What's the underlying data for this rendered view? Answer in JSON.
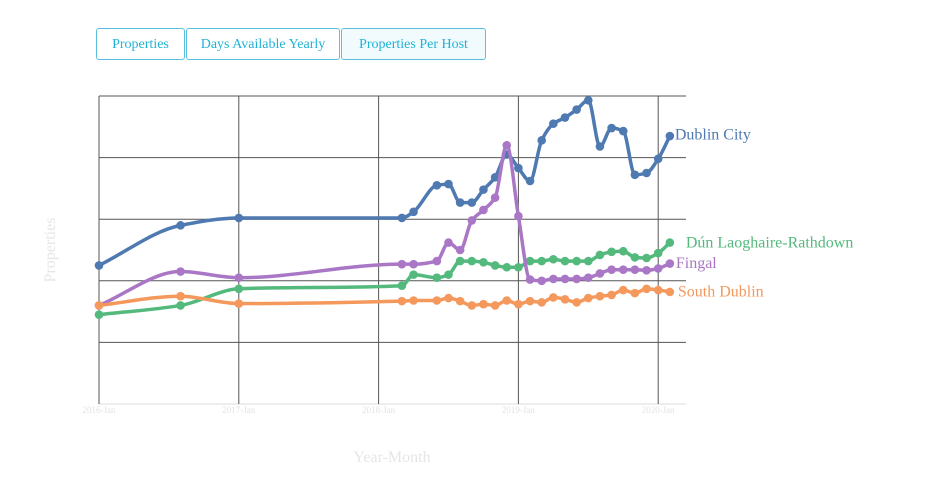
{
  "tabs": [
    {
      "label": "Properties",
      "active": false
    },
    {
      "label": "Days Available Yearly",
      "active": false
    },
    {
      "label": "Properties Per Host",
      "active": true
    }
  ],
  "chart_data": {
    "type": "line",
    "xlabel": "Year-Month",
    "ylabel": "Properties",
    "x_ticks": [
      "2016-Jan",
      "2017-Jan",
      "2018-Jan",
      "2019-Jan",
      "2020-Jan"
    ],
    "y_ticks_shown": false,
    "grid": true,
    "legend": "inline labels at line ends",
    "series": [
      {
        "name": "Dublin City",
        "color": "#4e79b1",
        "points": [
          [
            "2016-01",
            225
          ],
          [
            "2016-08",
            290
          ],
          [
            "2017-01",
            302
          ],
          [
            "2018-03",
            302
          ],
          [
            "2018-04",
            312
          ],
          [
            "2018-06",
            355
          ],
          [
            "2018-07",
            357
          ],
          [
            "2018-08",
            327
          ],
          [
            "2018-09",
            327
          ],
          [
            "2018-10",
            348
          ],
          [
            "2018-11",
            368
          ],
          [
            "2018-12",
            405
          ],
          [
            "2019-01",
            383
          ],
          [
            "2019-02",
            362
          ],
          [
            "2019-03",
            428
          ],
          [
            "2019-04",
            455
          ],
          [
            "2019-05",
            465
          ],
          [
            "2019-06",
            478
          ],
          [
            "2019-07",
            493
          ],
          [
            "2019-08",
            418
          ],
          [
            "2019-09",
            448
          ],
          [
            "2019-10",
            443
          ],
          [
            "2019-11",
            372
          ],
          [
            "2019-12",
            375
          ],
          [
            "2020-01",
            398
          ],
          [
            "2020-02",
            435
          ]
        ]
      },
      {
        "name": "Dún Laoghaire-Rathdown",
        "color": "#53b97c",
        "points": [
          [
            "2016-01",
            145
          ],
          [
            "2016-08",
            160
          ],
          [
            "2017-01",
            187
          ],
          [
            "2018-03",
            192
          ],
          [
            "2018-04",
            210
          ],
          [
            "2018-06",
            205
          ],
          [
            "2018-07",
            210
          ],
          [
            "2018-08",
            232
          ],
          [
            "2018-09",
            232
          ],
          [
            "2018-10",
            230
          ],
          [
            "2018-11",
            225
          ],
          [
            "2018-12",
            222
          ],
          [
            "2019-01",
            222
          ],
          [
            "2019-02",
            232
          ],
          [
            "2019-03",
            232
          ],
          [
            "2019-04",
            235
          ],
          [
            "2019-05",
            232
          ],
          [
            "2019-06",
            232
          ],
          [
            "2019-07",
            232
          ],
          [
            "2019-08",
            242
          ],
          [
            "2019-09",
            247
          ],
          [
            "2019-10",
            248
          ],
          [
            "2019-11",
            238
          ],
          [
            "2019-12",
            237
          ],
          [
            "2020-01",
            245
          ],
          [
            "2020-02",
            262
          ]
        ]
      },
      {
        "name": "Fingal",
        "color": "#a977c5",
        "points": [
          [
            "2016-01",
            160
          ],
          [
            "2016-08",
            215
          ],
          [
            "2017-01",
            205
          ],
          [
            "2018-03",
            227
          ],
          [
            "2018-04",
            227
          ],
          [
            "2018-06",
            232
          ],
          [
            "2018-07",
            262
          ],
          [
            "2018-08",
            250
          ],
          [
            "2018-09",
            298
          ],
          [
            "2018-10",
            315
          ],
          [
            "2018-11",
            335
          ],
          [
            "2018-12",
            420
          ],
          [
            "2019-01",
            305
          ],
          [
            "2019-02",
            202
          ],
          [
            "2019-03",
            200
          ],
          [
            "2019-04",
            203
          ],
          [
            "2019-05",
            203
          ],
          [
            "2019-06",
            203
          ],
          [
            "2019-07",
            205
          ],
          [
            "2019-08",
            212
          ],
          [
            "2019-09",
            218
          ],
          [
            "2019-10",
            218
          ],
          [
            "2019-11",
            218
          ],
          [
            "2019-12",
            217
          ],
          [
            "2020-01",
            220
          ],
          [
            "2020-02",
            228
          ]
        ]
      },
      {
        "name": "South Dublin",
        "color": "#f4985c",
        "points": [
          [
            "2016-01",
            160
          ],
          [
            "2016-08",
            175
          ],
          [
            "2017-01",
            163
          ],
          [
            "2018-03",
            167
          ],
          [
            "2018-04",
            168
          ],
          [
            "2018-06",
            168
          ],
          [
            "2018-07",
            172
          ],
          [
            "2018-08",
            167
          ],
          [
            "2018-09",
            160
          ],
          [
            "2018-10",
            162
          ],
          [
            "2018-11",
            160
          ],
          [
            "2018-12",
            168
          ],
          [
            "2019-01",
            162
          ],
          [
            "2019-02",
            167
          ],
          [
            "2019-03",
            165
          ],
          [
            "2019-04",
            173
          ],
          [
            "2019-05",
            170
          ],
          [
            "2019-06",
            165
          ],
          [
            "2019-07",
            172
          ],
          [
            "2019-08",
            175
          ],
          [
            "2019-09",
            177
          ],
          [
            "2019-10",
            185
          ],
          [
            "2019-11",
            180
          ],
          [
            "2019-12",
            187
          ],
          [
            "2020-01",
            185
          ],
          [
            "2020-02",
            182
          ]
        ]
      }
    ]
  }
}
